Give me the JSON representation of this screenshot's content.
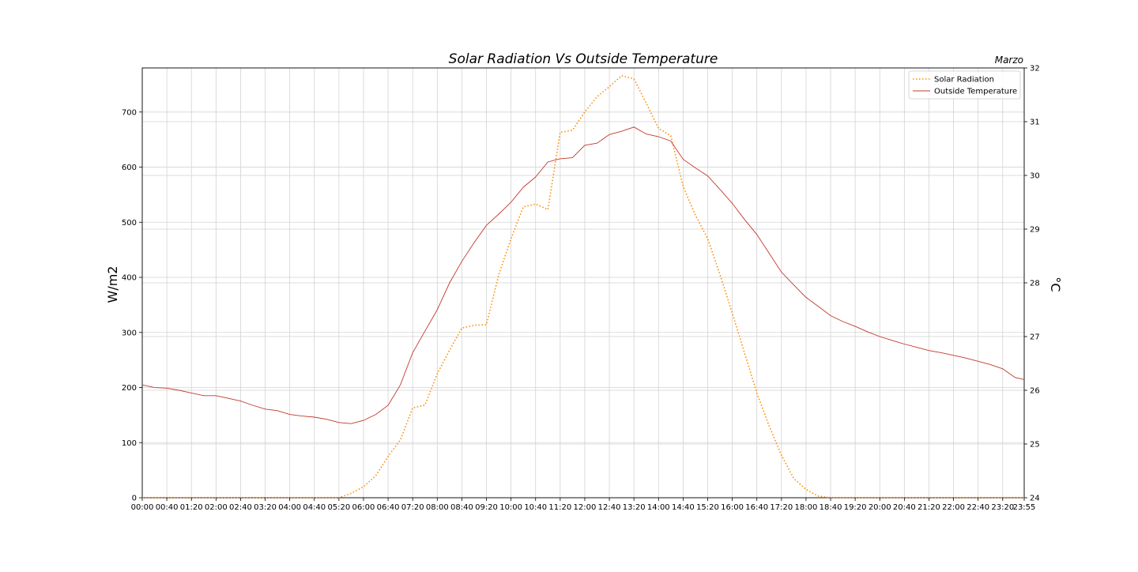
{
  "chart_data": {
    "type": "line",
    "title": "Solar Radiation Vs Outside Temperature",
    "subtitle": "Marzo",
    "xlabel": "",
    "ylabel_left": "W/m2",
    "ylabel_right": "°C",
    "grid": true,
    "legend_position": "top-right",
    "ylim_left": [
      0,
      780
    ],
    "ylim_right": [
      24,
      32
    ],
    "yticks_left": [
      0,
      100,
      200,
      300,
      400,
      500,
      600,
      700
    ],
    "yticks_right": [
      24,
      25,
      26,
      27,
      28,
      29,
      30,
      31,
      32
    ],
    "xticks": [
      "00:00",
      "00:40",
      "01:20",
      "02:00",
      "02:40",
      "03:20",
      "04:00",
      "04:40",
      "05:20",
      "06:00",
      "06:40",
      "07:20",
      "08:00",
      "08:40",
      "09:20",
      "10:00",
      "10:40",
      "11:20",
      "12:00",
      "12:40",
      "13:20",
      "14:00",
      "14:40",
      "15:20",
      "16:00",
      "16:40",
      "17:20",
      "18:00",
      "18:40",
      "19:20",
      "20:00",
      "20:40",
      "21:20",
      "22:00",
      "22:40",
      "23:20",
      "23:55"
    ],
    "series": [
      {
        "name": "Solar Radiation",
        "axis": "left",
        "color": "#ff8c00",
        "style": "dotted",
        "x": [
          "00:00",
          "00:40",
          "01:20",
          "02:00",
          "02:40",
          "03:20",
          "04:00",
          "04:40",
          "05:20",
          "05:40",
          "06:00",
          "06:20",
          "06:40",
          "07:00",
          "07:20",
          "07:40",
          "08:00",
          "08:20",
          "08:40",
          "09:00",
          "09:20",
          "09:40",
          "10:00",
          "10:20",
          "10:40",
          "11:00",
          "11:20",
          "11:40",
          "12:00",
          "12:20",
          "12:40",
          "13:00",
          "13:20",
          "13:40",
          "14:00",
          "14:20",
          "14:40",
          "15:00",
          "15:20",
          "15:40",
          "16:00",
          "16:20",
          "16:40",
          "17:00",
          "17:20",
          "17:40",
          "18:00",
          "18:20",
          "18:40",
          "19:20",
          "20:00",
          "20:40",
          "21:20",
          "22:00",
          "22:40",
          "23:20",
          "23:55"
        ],
        "values": [
          0,
          0,
          0,
          0,
          0,
          0,
          0,
          0,
          0,
          8,
          20,
          40,
          75,
          105,
          163,
          168,
          225,
          268,
          308,
          313,
          314,
          405,
          470,
          528,
          533,
          523,
          663,
          667,
          700,
          728,
          746,
          766,
          760,
          716,
          670,
          657,
          565,
          513,
          470,
          405,
          335,
          263,
          190,
          130,
          77,
          35,
          15,
          3,
          0,
          0,
          0,
          0,
          0,
          0,
          0,
          0,
          0
        ]
      },
      {
        "name": "Outside Temperature",
        "axis": "right",
        "color": "#c0392b",
        "style": "solid",
        "x": [
          "00:00",
          "00:20",
          "00:40",
          "01:00",
          "01:20",
          "01:40",
          "02:00",
          "02:20",
          "02:40",
          "03:00",
          "03:20",
          "03:40",
          "04:00",
          "04:20",
          "04:40",
          "05:00",
          "05:20",
          "05:40",
          "06:00",
          "06:20",
          "06:40",
          "07:00",
          "07:20",
          "07:40",
          "08:00",
          "08:20",
          "08:40",
          "09:00",
          "09:20",
          "09:40",
          "10:00",
          "10:20",
          "10:40",
          "11:00",
          "11:20",
          "11:40",
          "12:00",
          "12:20",
          "12:40",
          "13:00",
          "13:20",
          "13:40",
          "14:00",
          "14:20",
          "14:40",
          "15:00",
          "15:20",
          "15:40",
          "16:00",
          "16:20",
          "16:40",
          "17:00",
          "17:20",
          "17:40",
          "18:00",
          "18:20",
          "18:40",
          "19:00",
          "19:20",
          "19:40",
          "20:00",
          "20:20",
          "20:40",
          "21:00",
          "21:20",
          "21:40",
          "22:00",
          "22:20",
          "22:40",
          "23:00",
          "23:20",
          "23:40",
          "23:55"
        ],
        "values": [
          26.1,
          26.05,
          26.04,
          26.0,
          25.95,
          25.9,
          25.9,
          25.85,
          25.8,
          25.72,
          25.65,
          25.62,
          25.55,
          25.52,
          25.5,
          25.46,
          25.4,
          25.38,
          25.44,
          25.55,
          25.72,
          26.1,
          26.7,
          27.1,
          27.5,
          28.0,
          28.4,
          28.75,
          29.07,
          29.28,
          29.5,
          29.78,
          29.97,
          30.25,
          30.31,
          30.33,
          30.56,
          30.6,
          30.76,
          30.82,
          30.9,
          30.77,
          30.72,
          30.64,
          30.3,
          30.14,
          29.99,
          29.74,
          29.48,
          29.18,
          28.9,
          28.55,
          28.2,
          27.96,
          27.73,
          27.56,
          27.39,
          27.28,
          27.19,
          27.09,
          27.0,
          26.93,
          26.86,
          26.8,
          26.74,
          26.7,
          26.65,
          26.6,
          26.54,
          26.48,
          26.4,
          26.24,
          26.2
        ]
      }
    ]
  }
}
